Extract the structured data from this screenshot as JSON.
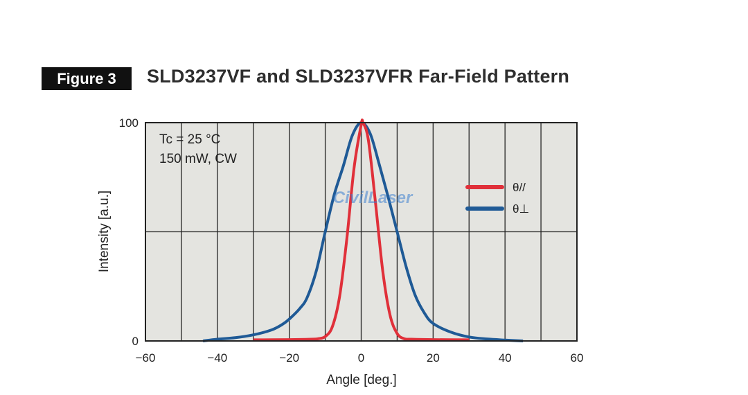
{
  "figure_label": "Figure 3",
  "chart_data": {
    "type": "line",
    "title": "SLD3237VF and SLD3237VFR Far-Field Pattern",
    "xlabel": "Angle [deg.]",
    "ylabel": "Intensity [a.u.]",
    "xlim": [
      -60,
      60
    ],
    "ylim": [
      0,
      100
    ],
    "xticks": [
      -60,
      -40,
      -20,
      0,
      20,
      40,
      60
    ],
    "yticks": [
      0,
      100
    ],
    "grid": {
      "x_step": 10,
      "y_step": 50
    },
    "annotations": [
      "Tc = 25 °C",
      "150 mW, CW"
    ],
    "watermark": "CivilLaser",
    "legend_position": "upper-right",
    "series": [
      {
        "name": "θ//",
        "color": "#e0303a",
        "x": [
          -30,
          -20,
          -14,
          -12,
          -10,
          -8,
          -6,
          -4,
          -2,
          0,
          0.5,
          2,
          4,
          6,
          8,
          10,
          12,
          14,
          20,
          30
        ],
        "y": [
          0.5,
          0.6,
          0.8,
          1,
          2,
          6.6,
          20.4,
          46.7,
          79,
          99,
          100,
          92,
          63,
          32,
          12,
          3.4,
          1,
          0.8,
          0.6,
          0.5
        ]
      },
      {
        "name": "θ⊥",
        "color": "#1f5a96",
        "x": [
          -44,
          -40,
          -35,
          -30,
          -25,
          -22,
          -20,
          -17,
          -15,
          -12.5,
          -10,
          -7.5,
          -5,
          -2.5,
          0,
          2.5,
          5,
          7.5,
          10,
          12.5,
          15,
          17.5,
          20,
          25,
          30,
          35,
          40,
          45
        ],
        "y": [
          0,
          0.8,
          1.5,
          2.8,
          5,
          7.5,
          10,
          15,
          20,
          32,
          50,
          67,
          80,
          94,
          100,
          95,
          81,
          66,
          50,
          34,
          21,
          13,
          8,
          4,
          1.8,
          0.9,
          0.4,
          0
        ]
      }
    ]
  }
}
